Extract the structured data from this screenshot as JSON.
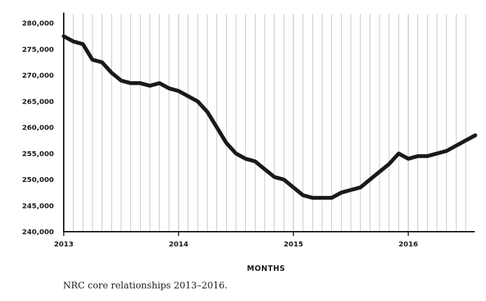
{
  "caption": "NRC core relationships 2013–2016.",
  "colors": {
    "line": "#1a1a1a",
    "grid": "#b8b8b8",
    "axis": "#1a1a1a",
    "background": "#ffffff"
  },
  "chart_data": {
    "type": "line",
    "title": "",
    "xlabel": "MONTHS",
    "ylabel": "",
    "grid": "vertical monthly gridlines",
    "legend": "none",
    "x_ticks": [
      "2013",
      "2014",
      "2015",
      "2016"
    ],
    "y_ticks": [
      {
        "value": 240000,
        "label": "240,000"
      },
      {
        "value": 245000,
        "label": "245,000"
      },
      {
        "value": 250000,
        "label": "250,000"
      },
      {
        "value": 255000,
        "label": "255,000"
      },
      {
        "value": 260000,
        "label": "260,000"
      },
      {
        "value": 265000,
        "label": "265,000"
      },
      {
        "value": 270000,
        "label": "270,000"
      },
      {
        "value": 275000,
        "label": "275,000"
      },
      {
        "value": 280000,
        "label": "280,000"
      }
    ],
    "ylim": [
      240000,
      281500
    ],
    "xlim": [
      "2013-01",
      "2016-08"
    ],
    "x": [
      "2013-01",
      "2013-02",
      "2013-03",
      "2013-04",
      "2013-05",
      "2013-06",
      "2013-07",
      "2013-08",
      "2013-09",
      "2013-10",
      "2013-11",
      "2013-12",
      "2014-01",
      "2014-02",
      "2014-03",
      "2014-04",
      "2014-05",
      "2014-06",
      "2014-07",
      "2014-08",
      "2014-09",
      "2014-10",
      "2014-11",
      "2014-12",
      "2015-01",
      "2015-02",
      "2015-03",
      "2015-04",
      "2015-05",
      "2015-06",
      "2015-07",
      "2015-08",
      "2015-09",
      "2015-10",
      "2015-11",
      "2015-12",
      "2016-01",
      "2016-02",
      "2016-03",
      "2016-04",
      "2016-05",
      "2016-06",
      "2016-07",
      "2016-08"
    ],
    "series": [
      {
        "values": [
          277500,
          276500,
          276000,
          273000,
          272500,
          270500,
          269000,
          268500,
          268500,
          268000,
          268500,
          267500,
          267000,
          266000,
          265000,
          263000,
          260000,
          257000,
          255000,
          254000,
          253500,
          252000,
          250500,
          250000,
          248500,
          247000,
          246500,
          246500,
          246500,
          247500,
          248000,
          248500,
          250000,
          251500,
          253000,
          255000,
          254000,
          254500,
          254500,
          255000,
          255500,
          256500,
          257500,
          258500
        ]
      }
    ]
  }
}
